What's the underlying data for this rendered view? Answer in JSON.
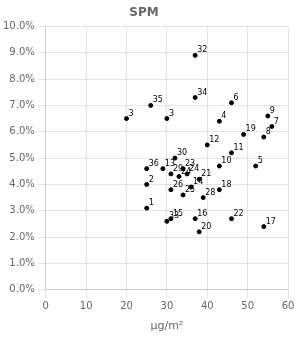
{
  "chart_data": {
    "type": "scatter",
    "title": "SPM",
    "x_label": "μg/m²",
    "x": [
      25,
      25,
      20,
      43,
      52,
      46,
      56,
      54,
      55,
      43,
      46,
      40,
      29,
      36,
      31,
      37,
      54,
      43,
      49,
      38,
      38,
      46,
      34,
      35,
      33,
      34,
      31,
      39,
      31,
      32,
      37,
      30,
      37,
      26,
      25,
      30
    ],
    "values": [
      0.031,
      0.04,
      0.065,
      0.064,
      0.047,
      0.071,
      0.062,
      0.058,
      0.066,
      0.047,
      0.052,
      0.055,
      0.046,
      0.039,
      0.027,
      0.027,
      0.024,
      0.038,
      0.059,
      0.022,
      0.042,
      0.027,
      0.046,
      0.044,
      0.043,
      0.036,
      0.038,
      0.035,
      0.044,
      0.05,
      0.089,
      0.026,
      0.073,
      0.07,
      0.046,
      0.065
    ],
    "annotations": [
      {
        "text": "1",
        "x": 25,
        "y": 0.031
      },
      {
        "text": "2",
        "x": 25,
        "y": 0.04
      },
      {
        "text": "3",
        "x": 20,
        "y": 0.065
      },
      {
        "text": "4",
        "x": 43,
        "y": 0.064
      },
      {
        "text": "5",
        "x": 52,
        "y": 0.047
      },
      {
        "text": "6",
        "x": 46,
        "y": 0.071
      },
      {
        "text": "7",
        "x": 56,
        "y": 0.062
      },
      {
        "text": "8",
        "x": 54,
        "y": 0.058
      },
      {
        "text": "9",
        "x": 55,
        "y": 0.066
      },
      {
        "text": "10",
        "x": 43,
        "y": 0.047
      },
      {
        "text": "11",
        "x": 46,
        "y": 0.052
      },
      {
        "text": "12",
        "x": 40,
        "y": 0.055
      },
      {
        "text": "13",
        "x": 29,
        "y": 0.046
      },
      {
        "text": "14",
        "x": 36,
        "y": 0.039
      },
      {
        "text": "15",
        "x": 31,
        "y": 0.027
      },
      {
        "text": "16",
        "x": 37,
        "y": 0.027
      },
      {
        "text": "17",
        "x": 54,
        "y": 0.024
      },
      {
        "text": "18",
        "x": 43,
        "y": 0.038
      },
      {
        "text": "19",
        "x": 49,
        "y": 0.059
      },
      {
        "text": "20",
        "x": 38,
        "y": 0.022
      },
      {
        "text": "21",
        "x": 38,
        "y": 0.042
      },
      {
        "text": "22",
        "x": 46,
        "y": 0.027
      },
      {
        "text": "23",
        "x": 34,
        "y": 0.046
      },
      {
        "text": "24",
        "x": 35,
        "y": 0.044
      },
      {
        "text": "24",
        "x": 33,
        "y": 0.043
      },
      {
        "text": "25",
        "x": 34,
        "y": 0.036
      },
      {
        "text": "26",
        "x": 31,
        "y": 0.038
      },
      {
        "text": "28",
        "x": 39,
        "y": 0.035
      },
      {
        "text": "29",
        "x": 31,
        "y": 0.044
      },
      {
        "text": "30",
        "x": 32,
        "y": 0.05
      },
      {
        "text": "32",
        "x": 37,
        "y": 0.089
      },
      {
        "text": "33",
        "x": 30,
        "y": 0.026
      },
      {
        "text": "34",
        "x": 37,
        "y": 0.073
      },
      {
        "text": "35",
        "x": 26,
        "y": 0.07
      },
      {
        "text": "36",
        "x": 25,
        "y": 0.046
      },
      {
        "text": "3",
        "x": 30,
        "y": 0.065
      }
    ],
    "color": "black",
    "marker": "dot",
    "xlim": [
      0,
      60
    ],
    "xticks": [
      0,
      10,
      20,
      30,
      40,
      50,
      60
    ],
    "ylim": [
      0.0,
      0.1
    ],
    "yticks": [
      {
        "value": 0.0,
        "label": "0.0%"
      },
      {
        "value": 0.01,
        "label": "1.0%"
      },
      {
        "value": 0.02,
        "label": "2.0%"
      },
      {
        "value": 0.03,
        "label": "3.0%"
      },
      {
        "value": 0.04,
        "label": "4.0%"
      },
      {
        "value": 0.05,
        "label": "5.0%"
      },
      {
        "value": 0.06,
        "label": "6.0%"
      },
      {
        "value": 0.07,
        "label": "7.0%"
      },
      {
        "value": 0.08,
        "label": "8.0%"
      },
      {
        "value": 0.09,
        "label": "9.0%"
      },
      {
        "value": 0.1,
        "label": "10.0%"
      }
    ],
    "grid": true
  }
}
